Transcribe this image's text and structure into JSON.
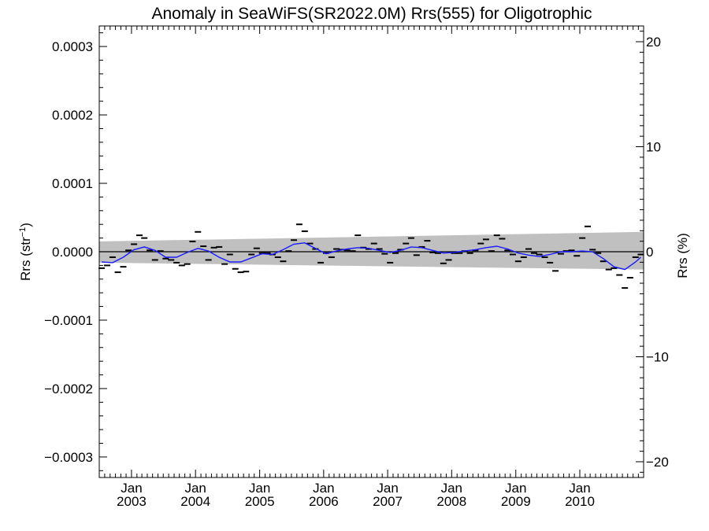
{
  "chart_data": {
    "type": "scatter",
    "title": "Anomaly in SeaWiFS(SR2022.0M) Rrs(555) for Oligotrophic",
    "ylabel_left": "Rrs (str",
    "ylabel_left_sup": "−1",
    "ylabel_left_end": ")",
    "ylabel_right": "Rrs (%)",
    "x_range": [
      "2002-07-01",
      "2010-12-31"
    ],
    "ylim": [
      -0.00033,
      0.00033
    ],
    "ylim_right": [
      -21.5,
      21.5
    ],
    "left_ticks": [
      {
        "value": 0.0003,
        "label": "0.0003"
      },
      {
        "value": 0.0002,
        "label": "0.0002"
      },
      {
        "value": 0.0001,
        "label": "0.0001"
      },
      {
        "value": 0.0,
        "label": "0.0000"
      },
      {
        "value": -0.0001,
        "label": "−0.0001"
      },
      {
        "value": -0.0002,
        "label": "−0.0002"
      },
      {
        "value": -0.0003,
        "label": "−0.0003"
      }
    ],
    "right_ticks": [
      {
        "value": 20,
        "label": "20"
      },
      {
        "value": 10,
        "label": "10"
      },
      {
        "value": 0,
        "label": "0"
      },
      {
        "value": -10,
        "label": "−10"
      },
      {
        "value": -20,
        "label": "−20"
      }
    ],
    "x_ticks": [
      {
        "date": "2003-01-01",
        "month": "Jan",
        "year": "2003"
      },
      {
        "date": "2004-01-01",
        "month": "Jan",
        "year": "2004"
      },
      {
        "date": "2005-01-01",
        "month": "Jan",
        "year": "2005"
      },
      {
        "date": "2006-01-01",
        "month": "Jan",
        "year": "2006"
      },
      {
        "date": "2007-01-01",
        "month": "Jan",
        "year": "2007"
      },
      {
        "date": "2008-01-01",
        "month": "Jan",
        "year": "2008"
      },
      {
        "date": "2009-01-01",
        "month": "Jan",
        "year": "2009"
      },
      {
        "date": "2010-01-01",
        "month": "Jan",
        "year": "2010"
      }
    ],
    "monthly_anomalies": [
      {
        "date": "2002-07",
        "y": -2.4e-05
      },
      {
        "date": "2002-08",
        "y": -2e-05
      },
      {
        "date": "2002-09",
        "y": -8e-06
      },
      {
        "date": "2002-10",
        "y": -3e-05
      },
      {
        "date": "2002-11",
        "y": -2.2e-05
      },
      {
        "date": "2002-12",
        "y": 2e-06
      },
      {
        "date": "2003-01",
        "y": 1.1e-05
      },
      {
        "date": "2003-02",
        "y": 2.4e-05
      },
      {
        "date": "2003-03",
        "y": 2e-05
      },
      {
        "date": "2003-04",
        "y": 2e-06
      },
      {
        "date": "2003-05",
        "y": -1.2e-05
      },
      {
        "date": "2003-06",
        "y": 1e-06
      },
      {
        "date": "2003-07",
        "y": -1e-05
      },
      {
        "date": "2003-08",
        "y": -1.2e-05
      },
      {
        "date": "2003-09",
        "y": -1.6e-05
      },
      {
        "date": "2003-10",
        "y": -2e-05
      },
      {
        "date": "2003-11",
        "y": -1.8e-05
      },
      {
        "date": "2003-12",
        "y": 1.5e-05
      },
      {
        "date": "2004-01",
        "y": 2.9e-05
      },
      {
        "date": "2004-02",
        "y": 8e-06
      },
      {
        "date": "2004-03",
        "y": -1.2e-05
      },
      {
        "date": "2004-04",
        "y": 6e-06
      },
      {
        "date": "2004-05",
        "y": 7e-06
      },
      {
        "date": "2004-06",
        "y": -1.8e-05
      },
      {
        "date": "2004-07",
        "y": -4e-06
      },
      {
        "date": "2004-08",
        "y": -2.5e-05
      },
      {
        "date": "2004-09",
        "y": -3e-05
      },
      {
        "date": "2004-10",
        "y": -2.9e-05
      },
      {
        "date": "2004-11",
        "y": -4e-06
      },
      {
        "date": "2004-12",
        "y": 5e-06
      },
      {
        "date": "2005-01",
        "y": -2e-06
      },
      {
        "date": "2005-02",
        "y": -2e-06
      },
      {
        "date": "2005-03",
        "y": -4e-06
      },
      {
        "date": "2005-04",
        "y": -8e-06
      },
      {
        "date": "2005-05",
        "y": -1.4e-05
      },
      {
        "date": "2005-06",
        "y": 1e-06
      },
      {
        "date": "2005-07",
        "y": 1.7e-05
      },
      {
        "date": "2005-08",
        "y": 4e-05
      },
      {
        "date": "2005-09",
        "y": 3e-05
      },
      {
        "date": "2005-10",
        "y": 1.2e-05
      },
      {
        "date": "2005-11",
        "y": 4e-06
      },
      {
        "date": "2005-12",
        "y": -1.6e-05
      },
      {
        "date": "2006-01",
        "y": -2e-06
      },
      {
        "date": "2006-02",
        "y": -8e-06
      },
      {
        "date": "2006-03",
        "y": 4e-06
      },
      {
        "date": "2006-04",
        "y": 3e-06
      },
      {
        "date": "2006-05",
        "y": 2e-06
      },
      {
        "date": "2006-06",
        "y": 1e-06
      },
      {
        "date": "2006-07",
        "y": 2.4e-05
      },
      {
        "date": "2006-08",
        "y": 6e-06
      },
      {
        "date": "2006-09",
        "y": 4e-06
      },
      {
        "date": "2006-10",
        "y": 1.2e-05
      },
      {
        "date": "2006-11",
        "y": 4e-06
      },
      {
        "date": "2006-12",
        "y": -3e-06
      },
      {
        "date": "2007-01",
        "y": -1.6e-05
      },
      {
        "date": "2007-02",
        "y": -2e-06
      },
      {
        "date": "2007-03",
        "y": 3e-06
      },
      {
        "date": "2007-04",
        "y": 1.2e-05
      },
      {
        "date": "2007-05",
        "y": 2e-05
      },
      {
        "date": "2007-06",
        "y": -5e-06
      },
      {
        "date": "2007-07",
        "y": 7e-06
      },
      {
        "date": "2007-08",
        "y": 1.6e-05
      },
      {
        "date": "2007-09",
        "y": -1e-06
      },
      {
        "date": "2007-10",
        "y": -2e-06
      },
      {
        "date": "2007-11",
        "y": -1.7e-05
      },
      {
        "date": "2007-12",
        "y": -1.2e-05
      },
      {
        "date": "2008-01",
        "y": -2e-06
      },
      {
        "date": "2008-02",
        "y": -2e-06
      },
      {
        "date": "2008-03",
        "y": 1e-06
      },
      {
        "date": "2008-04",
        "y": -2e-06
      },
      {
        "date": "2008-05",
        "y": 2e-06
      },
      {
        "date": "2008-06",
        "y": 1.2e-05
      },
      {
        "date": "2008-07",
        "y": 1.8e-05
      },
      {
        "date": "2008-08",
        "y": 1e-06
      },
      {
        "date": "2008-09",
        "y": 2.4e-05
      },
      {
        "date": "2008-10",
        "y": 1.9e-05
      },
      {
        "date": "2008-11",
        "y": 2e-06
      },
      {
        "date": "2008-12",
        "y": -4e-06
      },
      {
        "date": "2009-01",
        "y": -1.4e-05
      },
      {
        "date": "2009-02",
        "y": -8e-06
      },
      {
        "date": "2009-03",
        "y": 4e-06
      },
      {
        "date": "2009-04",
        "y": -2e-06
      },
      {
        "date": "2009-05",
        "y": -4e-06
      },
      {
        "date": "2009-06",
        "y": -8e-06
      },
      {
        "date": "2009-07",
        "y": -1.6e-05
      },
      {
        "date": "2009-08",
        "y": -2.8e-05
      },
      {
        "date": "2009-09",
        "y": -3e-06
      },
      {
        "date": "2009-10",
        "y": 1e-06
      },
      {
        "date": "2009-11",
        "y": 2e-06
      },
      {
        "date": "2009-12",
        "y": -6e-06
      },
      {
        "date": "2010-01",
        "y": 2e-05
      },
      {
        "date": "2010-02",
        "y": 3.7e-05
      },
      {
        "date": "2010-03",
        "y": 3e-06
      },
      {
        "date": "2010-04",
        "y": -2e-06
      },
      {
        "date": "2010-05",
        "y": -1.4e-05
      },
      {
        "date": "2010-06",
        "y": -2.6e-05
      },
      {
        "date": "2010-07",
        "y": -2.4e-05
      },
      {
        "date": "2010-08",
        "y": -3.4e-05
      },
      {
        "date": "2010-09",
        "y": -5.3e-05
      },
      {
        "date": "2010-10",
        "y": -3.8e-05
      },
      {
        "date": "2010-11",
        "y": -8e-06
      },
      {
        "date": "2010-12",
        "y": -4e-06
      }
    ],
    "smoothed_series": [
      {
        "date": "2002-07",
        "y": -1.5e-05
      },
      {
        "date": "2002-09",
        "y": -1.6e-05
      },
      {
        "date": "2002-11",
        "y": -8e-06
      },
      {
        "date": "2003-01",
        "y": 3e-06
      },
      {
        "date": "2003-03",
        "y": 7e-06
      },
      {
        "date": "2003-05",
        "y": 2e-06
      },
      {
        "date": "2003-07",
        "y": -8e-06
      },
      {
        "date": "2003-09",
        "y": -8e-06
      },
      {
        "date": "2003-11",
        "y": -1e-06
      },
      {
        "date": "2004-01",
        "y": 5e-06
      },
      {
        "date": "2004-03",
        "y": 1e-06
      },
      {
        "date": "2004-05",
        "y": -8e-06
      },
      {
        "date": "2004-07",
        "y": -1.5e-05
      },
      {
        "date": "2004-09",
        "y": -1.5e-05
      },
      {
        "date": "2004-11",
        "y": -9e-06
      },
      {
        "date": "2005-01",
        "y": -3e-06
      },
      {
        "date": "2005-03",
        "y": -4e-06
      },
      {
        "date": "2005-05",
        "y": 3e-06
      },
      {
        "date": "2005-07",
        "y": 1.1e-05
      },
      {
        "date": "2005-09",
        "y": 1.3e-05
      },
      {
        "date": "2005-11",
        "y": 5e-06
      },
      {
        "date": "2006-01",
        "y": -3e-06
      },
      {
        "date": "2006-03",
        "y": 1e-06
      },
      {
        "date": "2006-05",
        "y": 4e-06
      },
      {
        "date": "2006-07",
        "y": 6e-06
      },
      {
        "date": "2006-09",
        "y": 5e-06
      },
      {
        "date": "2006-11",
        "y": 2e-06
      },
      {
        "date": "2007-01",
        "y": -1e-06
      },
      {
        "date": "2007-03",
        "y": 2e-06
      },
      {
        "date": "2007-05",
        "y": 7e-06
      },
      {
        "date": "2007-07",
        "y": 6e-06
      },
      {
        "date": "2007-09",
        "y": 2e-06
      },
      {
        "date": "2007-11",
        "y": -2e-06
      },
      {
        "date": "2008-01",
        "y": -1e-06
      },
      {
        "date": "2008-03",
        "y": 1e-06
      },
      {
        "date": "2008-05",
        "y": 3e-06
      },
      {
        "date": "2008-07",
        "y": 6e-06
      },
      {
        "date": "2008-09",
        "y": 8e-06
      },
      {
        "date": "2008-11",
        "y": 4e-06
      },
      {
        "date": "2009-01",
        "y": -2e-06
      },
      {
        "date": "2009-03",
        "y": -5e-06
      },
      {
        "date": "2009-05",
        "y": -7e-06
      },
      {
        "date": "2009-07",
        "y": -4e-06
      },
      {
        "date": "2009-09",
        "y": 0.0
      },
      {
        "date": "2009-11",
        "y": 0.0
      },
      {
        "date": "2010-01",
        "y": 1e-06
      },
      {
        "date": "2010-03",
        "y": 0.0
      },
      {
        "date": "2010-05",
        "y": -1e-05
      },
      {
        "date": "2010-07",
        "y": -2.2e-05
      },
      {
        "date": "2010-09",
        "y": -2.6e-05
      },
      {
        "date": "2010-11",
        "y": -1.5e-05
      },
      {
        "date": "2010-12",
        "y": -8e-06
      }
    ],
    "band": {
      "start": {
        "date": "2002-07-01",
        "upper": 1.5e-05,
        "lower": -1.6e-05
      },
      "end": {
        "date": "2010-12-31",
        "upper": 2.9e-05,
        "lower": -2.6e-05
      }
    },
    "grid": false,
    "legend": "none",
    "colors": {
      "smoothed_line": "#1a1aff",
      "band": "#c0c0c0",
      "markers": "#000000",
      "zero_line": "#000000",
      "axes": "#000000"
    }
  }
}
